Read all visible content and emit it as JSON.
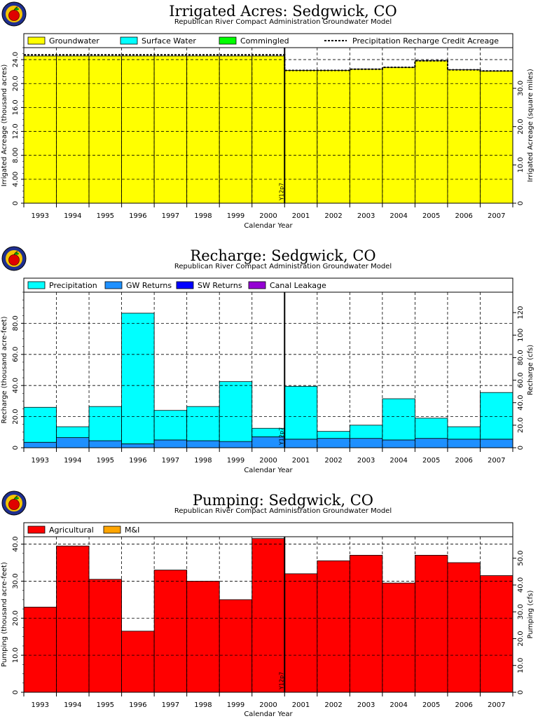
{
  "colors": {
    "groundwater": "#ffff00",
    "surface_water": "#00ffff",
    "commingled": "#00ff00",
    "precipitation": "#00ffff",
    "gw_returns": "#1e90ff",
    "sw_returns": "#0000ff",
    "canal_leakage": "#9400d3",
    "agricultural": "#ff0000",
    "mi": "#ffa500"
  },
  "logo_icon": "apple-logo-icon",
  "chart_data": [
    {
      "type": "bar",
      "title": "Irrigated Acres: Sedgwick, CO",
      "subtitle": "Republican River Compact Administration Groundwater Model",
      "xlabel": "Calendar Year",
      "ylabel": "Irrigated Acreage (thousand acres)",
      "y2label": "Irrigated Acreage (square miles)",
      "categories": [
        "1993",
        "1994",
        "1995",
        "1996",
        "1997",
        "1998",
        "1999",
        "2000",
        "2001",
        "2002",
        "2003",
        "2004",
        "2005",
        "2006",
        "2007"
      ],
      "ylim": [
        0,
        26
      ],
      "yticks": [
        "0",
        "4.00",
        "8.00",
        "12.0",
        "16.0",
        "20.0",
        "24.0"
      ],
      "y2ticks": [
        "0",
        "10.0",
        "20.0",
        "30.0"
      ],
      "y2_scale": 640,
      "marker": {
        "after_category_index": 7,
        "label": "Y12p7"
      },
      "legend": [
        {
          "name": "Groundwater",
          "color": "#ffff00",
          "kind": "box"
        },
        {
          "name": "Surface Water",
          "color": "#00ffff",
          "kind": "box"
        },
        {
          "name": "Commingled",
          "color": "#00ff00",
          "kind": "box"
        },
        {
          "name": "Precipitation Recharge Credit Acreage",
          "kind": "dash"
        }
      ],
      "series": [
        {
          "name": "Groundwater",
          "color": "#ffff00",
          "values": [
            24.6,
            24.6,
            24.6,
            24.6,
            24.6,
            24.6,
            24.6,
            24.6,
            22.2,
            22.2,
            22.4,
            22.7,
            23.8,
            22.3,
            22.1
          ]
        },
        {
          "name": "Surface Water",
          "color": "#00ffff",
          "values": [
            0,
            0,
            0,
            0,
            0,
            0,
            0,
            0,
            0,
            0,
            0,
            0,
            0,
            0,
            0
          ]
        },
        {
          "name": "Commingled",
          "color": "#00ff00",
          "values": [
            0,
            0,
            0,
            0,
            0,
            0,
            0,
            0,
            0,
            0,
            0,
            0,
            0,
            0,
            0
          ]
        }
      ],
      "dashed_line": {
        "name": "Precipitation Recharge Credit Acreage",
        "values": [
          24.8,
          24.8,
          24.8,
          24.8,
          24.8,
          24.8,
          24.8,
          24.8,
          22.2,
          22.2,
          22.4,
          22.7,
          23.8,
          22.3,
          22.1
        ]
      }
    },
    {
      "type": "bar",
      "title": "Recharge: Sedgwick, CO",
      "subtitle": "Republican River Compact Administration Groundwater Model",
      "xlabel": "Calendar Year",
      "ylabel": "Recharge (thousand acre-feet)",
      "y2label": "Recharge (cfs)",
      "categories": [
        "1993",
        "1994",
        "1995",
        "1996",
        "1997",
        "1998",
        "1999",
        "2000",
        "2001",
        "2002",
        "2003",
        "2004",
        "2005",
        "2006",
        "2007"
      ],
      "ylim": [
        0,
        100
      ],
      "yticks": [
        "0",
        "20.0",
        "40.0",
        "60.0",
        "80.0"
      ],
      "y2ticks": [
        "0",
        "20.0",
        "40.0",
        "60.0",
        "80.0",
        "100",
        "120"
      ],
      "y2_scale": 1.3813,
      "marker": {
        "after_category_index": 7,
        "label": "Y12p7"
      },
      "legend": [
        {
          "name": "Precipitation",
          "color": "#00ffff",
          "kind": "box"
        },
        {
          "name": "GW Returns",
          "color": "#1e90ff",
          "kind": "box"
        },
        {
          "name": "SW Returns",
          "color": "#0000ff",
          "kind": "box"
        },
        {
          "name": "Canal Leakage",
          "color": "#9400d3",
          "kind": "box"
        }
      ],
      "series": [
        {
          "name": "GW Returns",
          "color": "#1e90ff",
          "values": [
            3.5,
            6.5,
            4.5,
            2.5,
            5.0,
            4.5,
            4.0,
            7.0,
            5.5,
            6.0,
            6.0,
            5.0,
            6.0,
            5.5,
            5.5
          ]
        },
        {
          "name": "Precipitation",
          "color": "#00ffff",
          "values": [
            22.5,
            7.0,
            22.0,
            84.0,
            19.0,
            22.0,
            38.5,
            5.5,
            34.0,
            4.5,
            8.5,
            26.5,
            13.0,
            8.0,
            30.0
          ]
        }
      ]
    },
    {
      "type": "bar",
      "title": "Pumping: Sedgwick, CO",
      "subtitle": "Republican River Compact Administration Groundwater Model",
      "xlabel": "Calendar Year",
      "ylabel": "Pumping (thousand acre-feet)",
      "y2label": "Pumping (cfs)",
      "categories": [
        "1993",
        "1994",
        "1995",
        "1996",
        "1997",
        "1998",
        "1999",
        "2000",
        "2001",
        "2002",
        "2003",
        "2004",
        "2005",
        "2006",
        "2007"
      ],
      "ylim": [
        0,
        42
      ],
      "yticks": [
        "0",
        "10.0",
        "20.0",
        "30.0",
        "40.0"
      ],
      "y2ticks": [
        "0",
        "10.0",
        "20.0",
        "30.0",
        "40.0",
        "50.0"
      ],
      "y2_scale": 1.3813,
      "marker": {
        "after_category_index": 7,
        "label": "Y12p7"
      },
      "legend": [
        {
          "name": "Agricultural",
          "color": "#ff0000",
          "kind": "box"
        },
        {
          "name": "M&I",
          "color": "#ffa500",
          "kind": "box"
        }
      ],
      "series": [
        {
          "name": "Agricultural",
          "color": "#ff0000",
          "values": [
            23.0,
            39.5,
            30.5,
            16.5,
            33.0,
            30.0,
            25.0,
            41.5,
            32.0,
            35.5,
            37.0,
            29.5,
            37.0,
            35.0,
            31.5
          ]
        },
        {
          "name": "M&I",
          "color": "#ffa500",
          "values": [
            0,
            0,
            0,
            0,
            0,
            0,
            0,
            0,
            0,
            0,
            0,
            0,
            0,
            0,
            0
          ]
        }
      ]
    }
  ]
}
